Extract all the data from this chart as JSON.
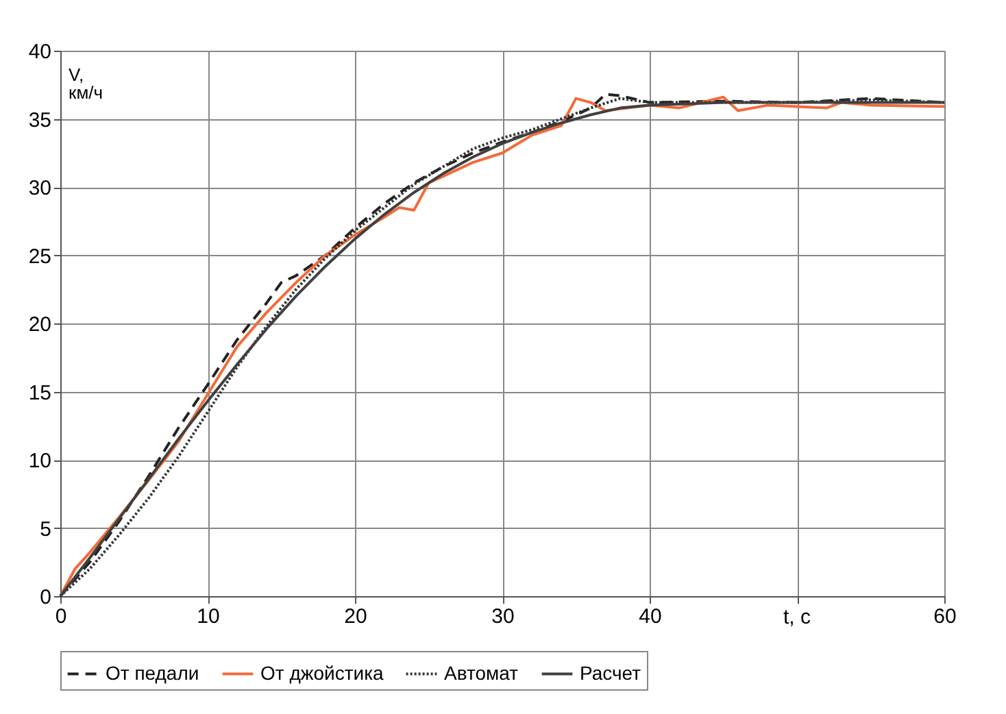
{
  "chart_data": {
    "type": "line",
    "xlabel": "t, с",
    "ylabel": "V, км/ч",
    "xlim": [
      0,
      60
    ],
    "xticks": [
      0,
      10,
      20,
      30,
      40,
      {
        "value": 50,
        "label": null
      },
      60
    ],
    "ylim": [
      0,
      40
    ],
    "yticks": [
      0,
      5,
      10,
      15,
      20,
      25,
      30,
      35,
      40
    ],
    "grid": true,
    "legend": "bottom",
    "series": [
      {
        "name": "От педали",
        "color": "#222222",
        "line_style": "dashed",
        "x": [
          0,
          2,
          4,
          6,
          8,
          10,
          12,
          14,
          15,
          16,
          18,
          20,
          22,
          24,
          26,
          28,
          30,
          32,
          34,
          36,
          37,
          38,
          40,
          45,
          50,
          55,
          60
        ],
        "values": [
          0,
          2.5,
          5.5,
          8.8,
          12.3,
          15.5,
          18.8,
          21.5,
          23,
          23.5,
          25,
          27,
          28.8,
          30.3,
          31.5,
          32.5,
          33.3,
          34,
          34.8,
          35.8,
          36.8,
          36.7,
          36.2,
          36.3,
          36.2,
          36.5,
          36.2
        ]
      },
      {
        "name": "От джойстика",
        "color": "#f26b3a",
        "line_style": "solid",
        "x": [
          0,
          1,
          2,
          4,
          6,
          8,
          10,
          12,
          14,
          16,
          18,
          20,
          22,
          23,
          24,
          25,
          26,
          28,
          30,
          32,
          34,
          35,
          36,
          37,
          40,
          42,
          45,
          46,
          48,
          50,
          52,
          53,
          55,
          60
        ],
        "values": [
          0,
          2,
          3.2,
          5.8,
          8.5,
          11.3,
          14.8,
          18.3,
          20.8,
          23,
          25,
          26.5,
          27.8,
          28.5,
          28.3,
          30.3,
          30.8,
          31.8,
          32.5,
          33.8,
          34.5,
          36.5,
          36.2,
          35.6,
          36,
          35.8,
          36.6,
          35.6,
          36,
          35.9,
          35.8,
          36.2,
          36,
          35.9
        ]
      },
      {
        "name": "Автомат",
        "color": "#333333",
        "line_style": "dotted",
        "x": [
          0,
          2,
          4,
          6,
          8,
          10,
          12,
          14,
          16,
          18,
          20,
          22,
          24,
          26,
          28,
          30,
          32,
          34,
          36,
          38,
          40,
          45,
          50,
          55,
          60
        ],
        "values": [
          0,
          2,
          4.5,
          7.2,
          10.2,
          13.5,
          16.8,
          19.8,
          22.5,
          24.8,
          26.8,
          28.5,
          30.2,
          31.5,
          32.8,
          33.6,
          34.2,
          35,
          35.8,
          36.5,
          36.2,
          36.2,
          36.2,
          36.4,
          36.2
        ]
      },
      {
        "name": "Расчет",
        "color": "#404040",
        "line_style": "solid",
        "x": [
          0,
          2,
          4,
          6,
          8,
          10,
          12,
          14,
          16,
          18,
          20,
          22,
          24,
          26,
          28,
          30,
          32,
          34,
          36,
          38,
          40,
          45,
          50,
          55,
          60
        ],
        "values": [
          0,
          2.8,
          5.7,
          8.6,
          11.5,
          14.3,
          17,
          19.6,
          22,
          24.2,
          26.2,
          28,
          29.6,
          31,
          32.2,
          33.2,
          34,
          34.7,
          35.3,
          35.8,
          36,
          36.2,
          36.2,
          36.2,
          36.2
        ]
      }
    ]
  }
}
